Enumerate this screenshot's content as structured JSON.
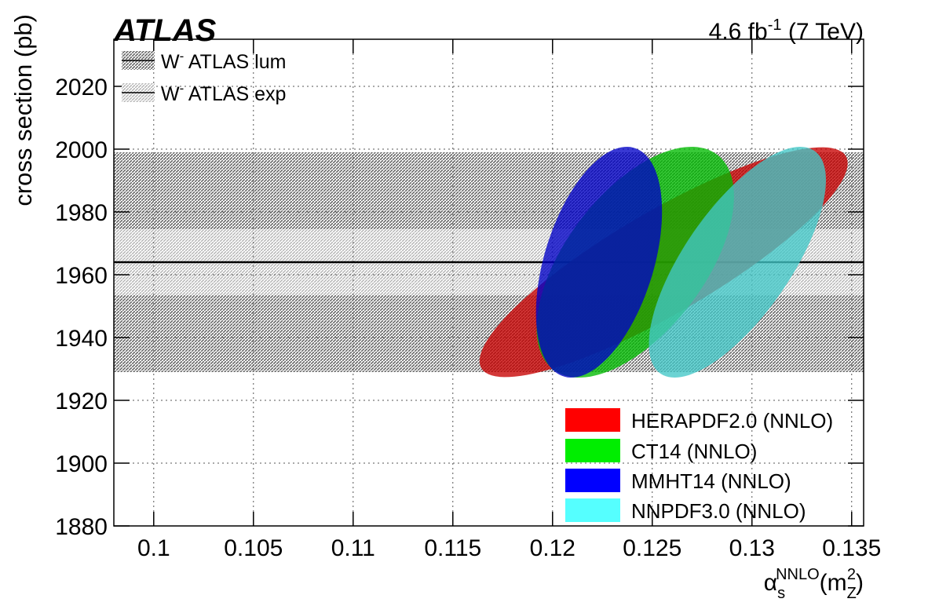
{
  "chart_data": {
    "type": "ellipse",
    "title": "ATLAS",
    "luminosity_label": [
      "4.6 fb",
      "-1",
      " (7 TeV)"
    ],
    "y_label": "cross section (pb)",
    "x_label": [
      "α",
      "s",
      "NNLO",
      "(m",
      "Z",
      "2",
      ")"
    ],
    "xlim": [
      0.098,
      0.1356
    ],
    "xticks": [
      0.1,
      0.105,
      0.11,
      0.115,
      0.12,
      0.125,
      0.13,
      0.135
    ],
    "ylim": [
      1880,
      2035
    ],
    "yticks": [
      1880,
      1900,
      1920,
      1940,
      1960,
      1980,
      2000,
      2020
    ],
    "grid": true,
    "measurement": {
      "value": 1964,
      "lum_uncertainty": 35,
      "exp_uncertainty": 10.5,
      "lum_name": [
        "W",
        "-",
        " ATLAS lum"
      ],
      "exp_name": [
        "W",
        "-",
        " ATLAS exp"
      ],
      "lum_color": "#8a8a8a",
      "exp_color": "#c8c8c8"
    },
    "legend": "lower right",
    "series": [
      {
        "name": "HERAPDF2.0 (NNLO)",
        "color": "#ff0000",
        "center_x": 0.12557,
        "half_x": 0.00923,
        "center_y": 1964,
        "half_y": 36.6,
        "correlation": 0.86
      },
      {
        "name": "CT14 (NNLO)",
        "color": "#00ee00",
        "center_x": 0.12415,
        "half_x": 0.00495,
        "center_y": 1964,
        "half_y": 36.75,
        "correlation": 0.57
      },
      {
        "name": "MMHT14 (NNLO)",
        "color": "#0000ff",
        "center_x": 0.12233,
        "half_x": 0.00316,
        "center_y": 1964,
        "half_y": 36.75,
        "correlation": 0.44
      },
      {
        "name": "NNPDF3.0 (NNLO)",
        "color": "#55ffff",
        "center_x": 0.12927,
        "half_x": 0.00444,
        "center_y": 1964,
        "half_y": 36.75,
        "correlation": 0.71
      }
    ]
  }
}
